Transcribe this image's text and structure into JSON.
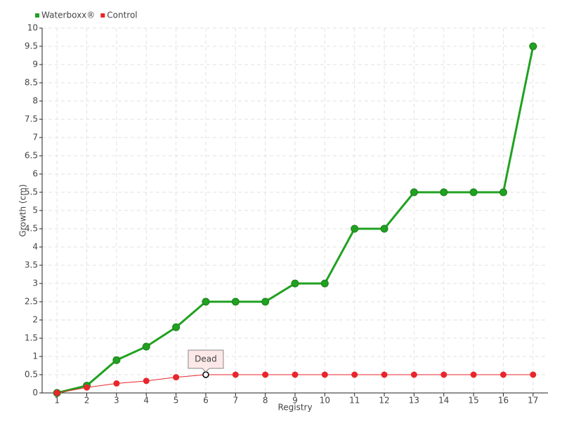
{
  "chart_data": {
    "type": "line",
    "xlabel": "Registry",
    "ylabel": "Growth (cm)",
    "x": [
      1,
      2,
      3,
      4,
      5,
      6,
      7,
      8,
      9,
      10,
      11,
      12,
      13,
      14,
      15,
      16,
      17
    ],
    "series": [
      {
        "name": "Waterboxx®",
        "color": "#21a121",
        "values": [
          0,
          0.2,
          0.9,
          1.27,
          1.8,
          2.5,
          2.5,
          2.5,
          3,
          3,
          4.5,
          4.5,
          5.5,
          5.5,
          5.5,
          5.5,
          9.5
        ]
      },
      {
        "name": "Control",
        "color": "#e8262c",
        "values": [
          0,
          0.15,
          0.26,
          0.33,
          0.43,
          0.5,
          0.5,
          0.5,
          0.5,
          0.5,
          0.5,
          0.5,
          0.5,
          0.5,
          0.5,
          0.5,
          0.5
        ]
      }
    ],
    "annotations": [
      {
        "text": "Dead",
        "x": 6,
        "y": 0.5
      }
    ],
    "xlim": [
      0.5,
      17.5
    ],
    "xticks": [
      1,
      2,
      3,
      4,
      5,
      6,
      7,
      8,
      9,
      10,
      11,
      12,
      13,
      14,
      15,
      16,
      17
    ],
    "ylim": [
      0,
      10
    ],
    "yticks": [
      0,
      0.5,
      1,
      1.5,
      2,
      2.5,
      3,
      3.5,
      4,
      4.5,
      5,
      5.5,
      6,
      6.5,
      7,
      7.5,
      8,
      8.5,
      9,
      9.5,
      10
    ],
    "grid": true,
    "legend": "top-left"
  }
}
